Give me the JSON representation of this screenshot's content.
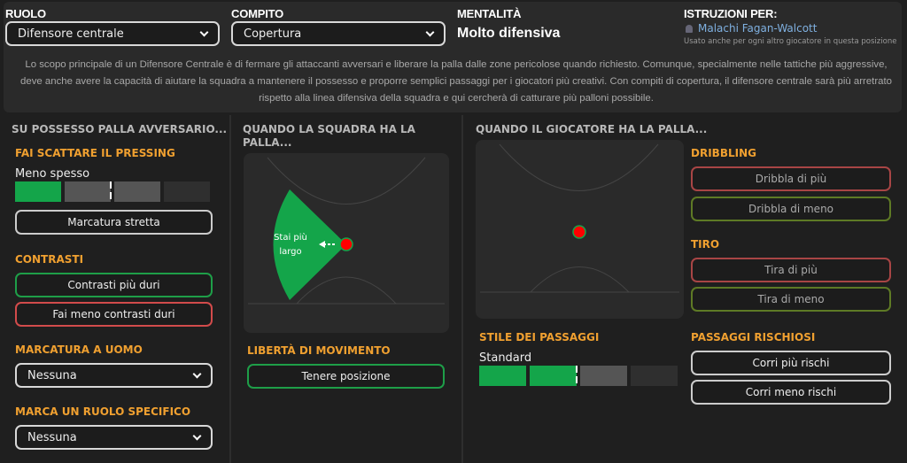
{
  "header": {
    "role_label": "RUOLO",
    "role_value": "Difensore centrale",
    "duty_label": "COMPITO",
    "duty_value": "Copertura",
    "mentality_label": "MENTALITÀ",
    "mentality_value": "Molto difensiva",
    "instructions_label": "ISTRUZIONI PER:",
    "player_name": "Malachi Fagan-Walcott",
    "player_note": "Usato anche per ogni altro giocatore in questa posizione",
    "description": "Lo scopo principale di un Difensore Centrale è di fermare gli attaccanti avversari e liberare la palla dalle zone pericolose quando richiesto. Comunque, specialmente nelle tattiche più aggressive, deve anche avere la capacità di aiutare la squadra a mantenere il possesso e proporre semplici passaggi per i giocatori più creativi. Con compiti di copertura, il difensore centrale sarà più arretrato rispetto alla linea difensiva della squadra e qui cercherà di catturare più palloni possibile."
  },
  "out_of_possession": {
    "title": "SU POSSESSO PALLA AVVERSARIO...",
    "pressing_label": "FAI SCATTARE IL PRESSING",
    "pressing_value": "Meno spesso",
    "pressing_level": 1,
    "pressing_steps": 4,
    "tight_marking": "Marcatura stretta",
    "tackling_label": "CONTRASTI",
    "tackle_harder": "Contrasti più duri",
    "ease_off": "Fai meno contrasti duri",
    "man_marking_label": "MARCATURA A UOMO",
    "man_marking_value": "Nessuna",
    "specific_role_label": "MARCA UN RUOLO SPECIFICO",
    "specific_role_value": "Nessuna"
  },
  "team_in_possession": {
    "title": "QUANDO LA SQUADRA HA LA PALLA...",
    "zone_label": "Stai più largo",
    "freedom_label": "LIBERTÀ DI MOVIMENTO",
    "freedom_value": "Tenere posizione"
  },
  "player_in_possession": {
    "title": "QUANDO IL GIOCATORE HA LA PALLA...",
    "dribbling_label": "DRIBBLING",
    "dribble_more": "Dribbla di più",
    "dribble_less": "Dribbla di meno",
    "shooting_label": "TIRO",
    "shoot_more": "Tira di più",
    "shoot_less": "Tira di meno",
    "passing_label": "STILE DEI PASSAGGI",
    "passing_value": "Standard",
    "passing_level": 2,
    "passing_steps": 4,
    "risky_label": "PASSAGGI RISCHIOSI",
    "risk_more": "Corri più rischi",
    "risk_less": "Corri meno rischi"
  },
  "colors": {
    "accent": "#f0a030",
    "green": "#14a54a",
    "red": "#d24b4b",
    "player_dot": "#ff0000",
    "link": "#7fb0e0"
  }
}
